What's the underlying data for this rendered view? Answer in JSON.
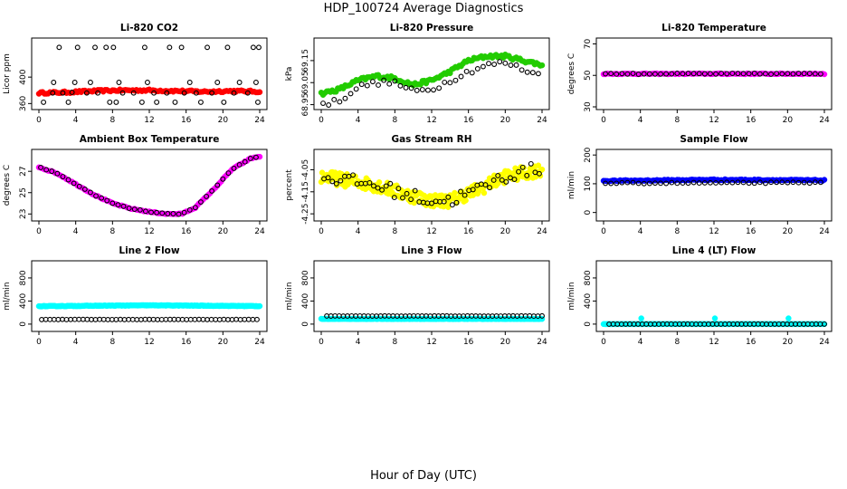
{
  "page": {
    "title": "HDP_100724  Average Diagnostics",
    "xlabel": "Hour of Day (UTC)"
  },
  "colors": {
    "black": "#000000",
    "red": "#ff0000",
    "green": "#22cc00",
    "magenta": "#ff00ff",
    "yellow": "#ffff00",
    "blue": "#0000ff",
    "cyan": "#00ffff"
  },
  "chart_data": [
    {
      "id": "co2",
      "type": "scatter",
      "title": "Li-820 CO2",
      "ylabel": "Licor ppm",
      "xlim": [
        0,
        24
      ],
      "ylim": [
        355,
        455
      ],
      "yticks": [
        360,
        400
      ],
      "xticks": [
        0,
        4,
        8,
        12,
        16,
        20,
        24
      ],
      "series": [
        {
          "color": "red",
          "marker": "filled",
          "hours": [
            0,
            24
          ],
          "step": 0.2,
          "points": [
            [
              0,
              376
            ],
            [
              3,
              377
            ],
            [
              6,
              379
            ],
            [
              9,
              380
            ],
            [
              12,
              380
            ],
            [
              15,
              379
            ],
            [
              18,
              378
            ],
            [
              21,
              379
            ],
            [
              24,
              378
            ]
          ],
          "jitter": 1.5
        },
        {
          "color": "black",
          "marker": "open",
          "xy": [
            [
              0.5,
              362
            ],
            [
              1.5,
              376
            ],
            [
              1.6,
              392
            ],
            [
              2.2,
              445
            ],
            [
              2.6,
              376
            ],
            [
              3.2,
              362
            ],
            [
              3.6,
              377
            ],
            [
              3.9,
              392
            ],
            [
              4.2,
              445
            ],
            [
              5.2,
              376
            ],
            [
              5.6,
              392
            ],
            [
              6.1,
              445
            ],
            [
              6.4,
              376
            ],
            [
              7.3,
              445
            ],
            [
              7.7,
              362
            ],
            [
              8.1,
              445
            ],
            [
              8.4,
              362
            ],
            [
              8.7,
              392
            ],
            [
              9.1,
              376
            ],
            [
              10.3,
              376
            ],
            [
              11.2,
              362
            ],
            [
              11.5,
              445
            ],
            [
              11.8,
              392
            ],
            [
              12.5,
              376
            ],
            [
              12.8,
              362
            ],
            [
              13.9,
              376
            ],
            [
              14.2,
              445
            ],
            [
              14.8,
              362
            ],
            [
              15.5,
              445
            ],
            [
              15.8,
              376
            ],
            [
              16.4,
              392
            ],
            [
              17.1,
              376
            ],
            [
              17.6,
              362
            ],
            [
              18.3,
              445
            ],
            [
              18.8,
              376
            ],
            [
              19.4,
              392
            ],
            [
              20.1,
              362
            ],
            [
              20.5,
              445
            ],
            [
              21.2,
              376
            ],
            [
              21.8,
              392
            ],
            [
              22.7,
              376
            ],
            [
              23.3,
              445
            ],
            [
              23.6,
              392
            ],
            [
              23.8,
              362
            ],
            [
              23.9,
              445
            ]
          ]
        }
      ]
    },
    {
      "id": "pressure",
      "type": "scatter",
      "title": "Li-820 Pressure",
      "ylabel": "kPa",
      "xlim": [
        0,
        24
      ],
      "ylim": [
        68.94,
        69.24
      ],
      "yticks": [
        68.95,
        69.05,
        69.15
      ],
      "xticks": [
        0,
        4,
        8,
        12,
        16,
        20,
        24
      ],
      "series": [
        {
          "color": "green",
          "marker": "filled",
          "hours": [
            0,
            24
          ],
          "step": 0.2,
          "points": [
            [
              0,
              69.0
            ],
            [
              2,
              69.02
            ],
            [
              4,
              69.06
            ],
            [
              6,
              69.08
            ],
            [
              8,
              69.07
            ],
            [
              10,
              69.04
            ],
            [
              12,
              69.06
            ],
            [
              14,
              69.1
            ],
            [
              16,
              69.15
            ],
            [
              18,
              69.17
            ],
            [
              20,
              69.17
            ],
            [
              22,
              69.15
            ],
            [
              24,
              69.13
            ]
          ],
          "jitter": 0.008
        },
        {
          "color": "black",
          "marker": "open",
          "hours": [
            0.2,
            24
          ],
          "step": 0.6,
          "points": [
            [
              0,
              68.95
            ],
            [
              2,
              68.97
            ],
            [
              4,
              69.03
            ],
            [
              6,
              69.05
            ],
            [
              8,
              69.05
            ],
            [
              10,
              69.01
            ],
            [
              12,
              69.02
            ],
            [
              14,
              69.06
            ],
            [
              16,
              69.1
            ],
            [
              18,
              69.13
            ],
            [
              20,
              69.14
            ],
            [
              22,
              69.11
            ],
            [
              24,
              69.08
            ]
          ],
          "jitter": 0.012
        }
      ]
    },
    {
      "id": "licor-temp",
      "type": "scatter",
      "title": "Li-820 Temperature",
      "ylabel": "degrees C",
      "xlim": [
        0,
        24
      ],
      "ylim": [
        30,
        72
      ],
      "yticks": [
        30,
        50,
        70
      ],
      "xticks": [
        0,
        4,
        8,
        12,
        16,
        20,
        24
      ],
      "series": [
        {
          "color": "magenta",
          "marker": "filled",
          "hours": [
            0,
            24
          ],
          "step": 0.2,
          "points": [
            [
              0,
              51
            ],
            [
              24,
              51
            ]
          ],
          "jitter": 0.3
        },
        {
          "color": "black",
          "marker": "open",
          "hours": [
            0.2,
            24
          ],
          "step": 0.6,
          "points": [
            [
              0,
              51
            ],
            [
              24,
              51
            ]
          ],
          "jitter": 0.3
        }
      ]
    },
    {
      "id": "box-temp",
      "type": "scatter",
      "title": "Ambient Box Temperature",
      "ylabel": "degrees C",
      "xlim": [
        0,
        24
      ],
      "ylim": [
        22.6,
        28.8
      ],
      "yticks": [
        23,
        25,
        27
      ],
      "xticks": [
        0,
        4,
        8,
        12,
        16,
        20,
        24
      ],
      "series": [
        {
          "color": "magenta",
          "marker": "filled",
          "hours": [
            0,
            24
          ],
          "step": 0.2,
          "points": [
            [
              0,
              27.4
            ],
            [
              2,
              26.8
            ],
            [
              4,
              25.8
            ],
            [
              6,
              24.8
            ],
            [
              8,
              24.0
            ],
            [
              10,
              23.5
            ],
            [
              12,
              23.2
            ],
            [
              14,
              23.0
            ],
            [
              15.5,
              23.0
            ],
            [
              17,
              23.6
            ],
            [
              19,
              25.3
            ],
            [
              21,
              27.2
            ],
            [
              23,
              28.2
            ],
            [
              24,
              28.4
            ]
          ],
          "jitter": 0.05
        },
        {
          "color": "black",
          "marker": "open",
          "hours": [
            0.2,
            24
          ],
          "step": 0.6,
          "points": [
            [
              0,
              27.4
            ],
            [
              2,
              26.8
            ],
            [
              4,
              25.8
            ],
            [
              6,
              24.8
            ],
            [
              8,
              24.0
            ],
            [
              10,
              23.5
            ],
            [
              12,
              23.2
            ],
            [
              14,
              23.0
            ],
            [
              15.5,
              23.0
            ],
            [
              17,
              23.6
            ],
            [
              19,
              25.3
            ],
            [
              21,
              27.2
            ],
            [
              23,
              28.2
            ],
            [
              24,
              28.4
            ]
          ],
          "jitter": 0.03
        }
      ]
    },
    {
      "id": "gas-rh",
      "type": "scatter",
      "title": "Gas Stream RH",
      "ylabel": "percent",
      "xlim": [
        0,
        24
      ],
      "ylim": [
        -4.27,
        -3.97
      ],
      "yticks": [
        -4.25,
        -4.15,
        -4.05
      ],
      "xticks": [
        0,
        4,
        8,
        12,
        16,
        20,
        24
      ],
      "series": [
        {
          "color": "yellow",
          "marker": "filled",
          "hours": [
            0,
            24
          ],
          "step": 0.1,
          "points": [
            [
              0,
              -4.08
            ],
            [
              3,
              -4.1
            ],
            [
              6,
              -4.12
            ],
            [
              9,
              -4.16
            ],
            [
              12,
              -4.19
            ],
            [
              14,
              -4.19
            ],
            [
              17,
              -4.14
            ],
            [
              20,
              -4.08
            ],
            [
              24,
              -4.05
            ]
          ],
          "jitter": 0.03
        },
        {
          "color": "black",
          "marker": "open",
          "hours": [
            0.3,
            24
          ],
          "step": 0.45,
          "points": [
            [
              0,
              -4.08
            ],
            [
              3,
              -4.1
            ],
            [
              6,
              -4.12
            ],
            [
              9,
              -4.16
            ],
            [
              12,
              -4.19
            ],
            [
              14,
              -4.19
            ],
            [
              17,
              -4.14
            ],
            [
              20,
              -4.08
            ],
            [
              24,
              -4.04
            ]
          ],
          "jitter": 0.03
        }
      ]
    },
    {
      "id": "sample-flow",
      "type": "scatter",
      "title": "Sample Flow",
      "ylabel": "ml/min",
      "xlim": [
        0,
        24
      ],
      "ylim": [
        -20,
        210
      ],
      "yticks": [
        0,
        100,
        200
      ],
      "xticks": [
        0,
        4,
        8,
        12,
        16,
        20,
        24
      ],
      "series": [
        {
          "color": "blue",
          "marker": "filled",
          "hours": [
            0,
            24
          ],
          "step": 0.2,
          "points": [
            [
              0,
              110
            ],
            [
              12,
              114
            ],
            [
              24,
              112
            ]
          ],
          "jitter": 2
        },
        {
          "color": "black",
          "marker": "open",
          "hours": [
            0.2,
            24
          ],
          "step": 0.6,
          "points": [
            [
              0,
              102
            ],
            [
              24,
              104
            ]
          ],
          "jitter": 2
        }
      ]
    },
    {
      "id": "line2-flow",
      "type": "scatter",
      "title": "Line 2 Flow",
      "ylabel": "ml/min",
      "xlim": [
        0,
        24
      ],
      "ylim": [
        -80,
        1050
      ],
      "yticks": [
        0,
        400,
        800
      ],
      "xticks": [
        0,
        4,
        8,
        12,
        16,
        20,
        24
      ],
      "series": [
        {
          "color": "cyan",
          "marker": "filled",
          "hours": [
            0,
            24
          ],
          "step": 0.1,
          "points": [
            [
              0,
              310
            ],
            [
              12,
              325
            ],
            [
              24,
              312
            ]
          ],
          "jitter": 5
        },
        {
          "color": "black",
          "marker": "open",
          "hours": [
            0.3,
            24
          ],
          "step": 0.45,
          "points": [
            [
              0,
              80
            ],
            [
              24,
              80
            ]
          ],
          "jitter": 2
        }
      ]
    },
    {
      "id": "line3-flow",
      "type": "scatter",
      "title": "Line 3 Flow",
      "ylabel": "ml/min",
      "xlim": [
        0,
        24
      ],
      "ylim": [
        -80,
        1050
      ],
      "yticks": [
        0,
        400,
        800
      ],
      "xticks": [
        0,
        4,
        8,
        12,
        16,
        20,
        24
      ],
      "series": [
        {
          "color": "cyan",
          "marker": "filled",
          "hours": [
            0,
            24
          ],
          "step": 0.1,
          "points": [
            [
              0,
              90
            ],
            [
              24,
              90
            ]
          ],
          "jitter": 4
        },
        {
          "color": "black",
          "marker": "open",
          "hours": [
            0.6,
            24
          ],
          "step": 0.45,
          "points": [
            [
              0,
              140
            ],
            [
              24,
              140
            ]
          ],
          "jitter": 2
        }
      ]
    },
    {
      "id": "line4-flow",
      "type": "scatter",
      "title": "Line 4 (LT) Flow",
      "ylabel": "ml/min",
      "xlim": [
        0,
        24
      ],
      "ylim": [
        -80,
        1050
      ],
      "yticks": [
        0,
        400,
        800
      ],
      "xticks": [
        0,
        4,
        8,
        12,
        16,
        20,
        24
      ],
      "series": [
        {
          "color": "cyan",
          "marker": "filled",
          "hours": [
            0,
            24
          ],
          "step": 0.1,
          "points": [
            [
              0,
              0
            ],
            [
              24,
              0
            ]
          ],
          "jitter": 1,
          "extra": [
            [
              4.1,
              100
            ],
            [
              12.1,
              100
            ],
            [
              20.1,
              100
            ]
          ]
        },
        {
          "color": "black",
          "marker": "open",
          "hours": [
            0.6,
            24
          ],
          "step": 0.45,
          "points": [
            [
              0,
              0
            ],
            [
              24,
              0
            ]
          ],
          "jitter": 1
        }
      ]
    }
  ]
}
